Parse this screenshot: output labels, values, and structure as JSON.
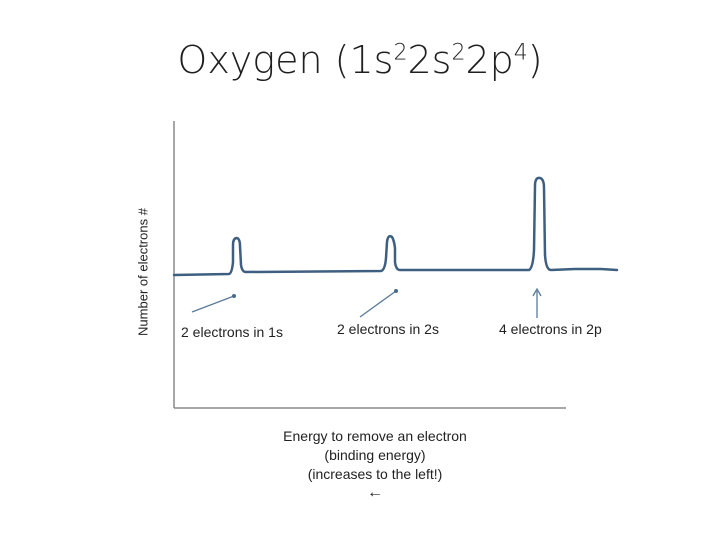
{
  "title": {
    "text": "Oxygen (1s",
    "sup1": "2",
    "part2": "2s",
    "sup2": "2",
    "part3": "2p",
    "sup3": "4",
    "end": ")"
  },
  "y_axis_label": "Number of electrons #",
  "peaks": [
    {
      "label": "2 electrons in 1s"
    },
    {
      "label": "2 electrons in 2s"
    },
    {
      "label": "4 electrons in 2p"
    }
  ],
  "x_caption": {
    "line1": "Energy  to remove an electron",
    "line2": "(binding energy)",
    "line3": "(increases to the left!)",
    "arrow": "←"
  },
  "colors": {
    "spectrum_line": "#3e5f80",
    "axis": "#8a8a8a",
    "pointer": "#5a7a9a"
  }
}
